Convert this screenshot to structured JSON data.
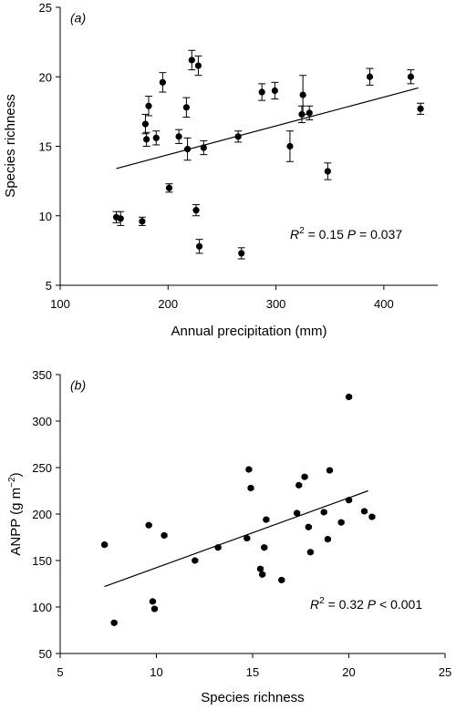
{
  "chart_data": [
    {
      "type": "scatter",
      "panel_label": "(a)",
      "xlabel": "Annual precipitation (mm)",
      "ylabel": "Species richness",
      "xlim": [
        100,
        450
      ],
      "ylim": [
        5,
        25
      ],
      "xticks": [
        100,
        200,
        300,
        400
      ],
      "yticks": [
        5,
        10,
        15,
        20,
        25
      ],
      "error_bars": "vertical",
      "annotation": {
        "r2_label": "R",
        "r2_sup": "2",
        "r2_value": "= 0.15",
        "p_label": "P",
        "p_value": "= 0.037"
      },
      "trend_line": {
        "x": [
          152,
          432
        ],
        "y": [
          13.4,
          19.2
        ]
      },
      "points": [
        {
          "x": 152,
          "y": 9.9,
          "err": 0.4
        },
        {
          "x": 156,
          "y": 9.8,
          "err": 0.5
        },
        {
          "x": 176,
          "y": 9.6,
          "err": 0.3
        },
        {
          "x": 179,
          "y": 16.6,
          "err": 0.7
        },
        {
          "x": 180,
          "y": 15.5,
          "err": 0.5
        },
        {
          "x": 182,
          "y": 17.9,
          "err": 0.7
        },
        {
          "x": 189,
          "y": 15.6,
          "err": 0.5
        },
        {
          "x": 195,
          "y": 19.6,
          "err": 0.7
        },
        {
          "x": 201,
          "y": 12.0,
          "err": 0.3
        },
        {
          "x": 210,
          "y": 15.7,
          "err": 0.5
        },
        {
          "x": 217,
          "y": 17.8,
          "err": 0.7
        },
        {
          "x": 218,
          "y": 14.8,
          "err": 0.8
        },
        {
          "x": 222,
          "y": 21.2,
          "err": 0.7
        },
        {
          "x": 226,
          "y": 10.4,
          "err": 0.4
        },
        {
          "x": 228,
          "y": 20.8,
          "err": 0.7
        },
        {
          "x": 229,
          "y": 7.8,
          "err": 0.5
        },
        {
          "x": 233,
          "y": 14.9,
          "err": 0.5
        },
        {
          "x": 265,
          "y": 15.7,
          "err": 0.4
        },
        {
          "x": 268,
          "y": 7.3,
          "err": 0.4
        },
        {
          "x": 287,
          "y": 18.9,
          "err": 0.6
        },
        {
          "x": 299,
          "y": 19.0,
          "err": 0.6
        },
        {
          "x": 313,
          "y": 15.0,
          "err": 1.1
        },
        {
          "x": 324,
          "y": 17.3,
          "err": 0.6
        },
        {
          "x": 325,
          "y": 18.7,
          "err": 1.4
        },
        {
          "x": 331,
          "y": 17.4,
          "err": 0.5
        },
        {
          "x": 348,
          "y": 13.2,
          "err": 0.6
        },
        {
          "x": 387,
          "y": 20.0,
          "err": 0.6
        },
        {
          "x": 425,
          "y": 20.0,
          "err": 0.5
        },
        {
          "x": 434,
          "y": 17.7,
          "err": 0.4
        }
      ]
    },
    {
      "type": "scatter",
      "panel_label": "(b)",
      "xlabel": "Species richness",
      "ylabel_main": "ANPP (g m",
      "ylabel_sup": "−2",
      "ylabel_end": ")",
      "xlim": [
        5,
        25
      ],
      "ylim": [
        50,
        350
      ],
      "xticks": [
        5,
        10,
        15,
        20,
        25
      ],
      "yticks": [
        50,
        100,
        150,
        200,
        250,
        300,
        350
      ],
      "error_bars": "horizontal",
      "annotation": {
        "r2_label": "R",
        "r2_sup": "2",
        "r2_value": "= 0.32",
        "p_label": "P",
        "p_value": "< 0.001"
      },
      "trend_line": {
        "x": [
          7.3,
          21.0
        ],
        "y": [
          122,
          225
        ]
      },
      "points": [
        {
          "x": 7.3,
          "y": 167,
          "err": 0.15
        },
        {
          "x": 7.8,
          "y": 83,
          "err": 0.15
        },
        {
          "x": 9.6,
          "y": 188,
          "err": 0.15
        },
        {
          "x": 9.8,
          "y": 106,
          "err": 0.15
        },
        {
          "x": 9.9,
          "y": 98,
          "err": 0.15
        },
        {
          "x": 10.4,
          "y": 177,
          "err": 0.15
        },
        {
          "x": 12.0,
          "y": 150,
          "err": 0.15
        },
        {
          "x": 13.2,
          "y": 164,
          "err": 0.15
        },
        {
          "x": 14.7,
          "y": 174,
          "err": 0.15
        },
        {
          "x": 14.8,
          "y": 248,
          "err": 0.15
        },
        {
          "x": 14.9,
          "y": 228,
          "err": 0.15
        },
        {
          "x": 15.4,
          "y": 141,
          "err": 0.15
        },
        {
          "x": 15.5,
          "y": 135,
          "err": 0.15
        },
        {
          "x": 15.6,
          "y": 164,
          "err": 0.15
        },
        {
          "x": 15.7,
          "y": 194,
          "err": 0.15
        },
        {
          "x": 16.5,
          "y": 129,
          "err": 0.15
        },
        {
          "x": 17.3,
          "y": 201,
          "err": 0.15
        },
        {
          "x": 17.4,
          "y": 231,
          "err": 0.15
        },
        {
          "x": 17.7,
          "y": 240,
          "err": 0.15
        },
        {
          "x": 17.9,
          "y": 186,
          "err": 0.15
        },
        {
          "x": 18.0,
          "y": 159,
          "err": 0.15
        },
        {
          "x": 18.7,
          "y": 202,
          "err": 0.15
        },
        {
          "x": 18.9,
          "y": 173,
          "err": 0.15
        },
        {
          "x": 19.0,
          "y": 247,
          "err": 0.15
        },
        {
          "x": 19.6,
          "y": 191,
          "err": 0.15
        },
        {
          "x": 20.0,
          "y": 215,
          "err": 0.15
        },
        {
          "x": 20.0,
          "y": 326,
          "err": 0.15
        },
        {
          "x": 20.8,
          "y": 203,
          "err": 0.15
        },
        {
          "x": 21.2,
          "y": 197,
          "err": 0.15
        }
      ]
    }
  ]
}
